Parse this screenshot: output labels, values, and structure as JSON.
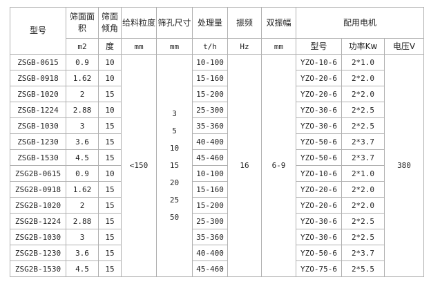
{
  "headers": {
    "model": "型号",
    "area": "筛面面积",
    "angle": "筛面倾角",
    "feed": "给料粒度",
    "aperture": "筛孔尺寸",
    "capacity": "处理量",
    "freq": "振频",
    "amp": "双振幅",
    "motor": "配用电机",
    "motor_model": "型号",
    "power": "功率Kw",
    "voltage": "电压V"
  },
  "units": {
    "area": "m2",
    "angle": "度",
    "feed": "mm",
    "aperture": "mm",
    "capacity": "t/h",
    "freq": "Hz",
    "amp": "mm"
  },
  "shared": {
    "feed": "<150",
    "apertures": [
      "3",
      "5",
      "10",
      "15",
      "20",
      "25",
      "50"
    ],
    "freq": "16",
    "amp": "6-9",
    "voltage": "380"
  },
  "rows": [
    [
      "ZSGB-0615",
      "0.9",
      "10",
      "10-100",
      "YZO-10-6",
      "2*1.0"
    ],
    [
      "ZSGB-0918",
      "1.62",
      "10",
      "15-160",
      "YZO-20-6",
      "2*2.0"
    ],
    [
      "ZSGB-1020",
      "2",
      "15",
      "15-200",
      "YZO-20-6",
      "2*2.0"
    ],
    [
      "ZSGB-1224",
      "2.88",
      "10",
      "25-300",
      "YZO-30-6",
      "2*2.5"
    ],
    [
      "ZSGB-1030",
      "3",
      "15",
      "35-360",
      "YZO-30-6",
      "2*2.5"
    ],
    [
      "ZSGB-1230",
      "3.6",
      "15",
      "40-400",
      "YZO-50-6",
      "2*3.7"
    ],
    [
      "ZSGB-1530",
      "4.5",
      "15",
      "45-460",
      "YZO-50-6",
      "2*3.7"
    ],
    [
      "ZSG2B-0615",
      "0.9",
      "10",
      "10-100",
      "YZO-10-6",
      "2*1.0"
    ],
    [
      "ZSG2B-0918",
      "1.62",
      "15",
      "15-160",
      "YZO-20-6",
      "2*2.0"
    ],
    [
      "ZSG2B-1020",
      "2",
      "15",
      "15-200",
      "YZO-20-6",
      "2*2.0"
    ],
    [
      "ZSG2B-1224",
      "2.88",
      "15",
      "25-300",
      "YZO-30-6",
      "2*2.5"
    ],
    [
      "ZSG2B-1030",
      "3",
      "15",
      "35-360",
      "YZO-30-6",
      "2*2.5"
    ],
    [
      "ZSG2B-1230",
      "3.6",
      "15",
      "40-400",
      "YZO-50-6",
      "2*3.7"
    ],
    [
      "ZSG2B-1530",
      "4.5",
      "15",
      "45-460",
      "YZO-75-6",
      "2*5.5"
    ]
  ]
}
